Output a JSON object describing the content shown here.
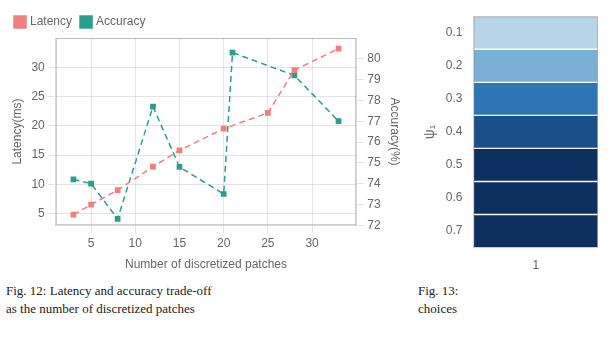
{
  "chart_data": [
    {
      "type": "line",
      "xlabel": "Number of discretized patches",
      "ylabel": "Latency(ms)",
      "y2label": "Accuracy(%)",
      "series": [
        {
          "name": "Latency",
          "color": "#f08080",
          "marker": "square",
          "line_style": "dashed",
          "x": [
            3,
            5,
            8,
            12,
            15,
            20,
            25,
            28,
            33
          ],
          "values": [
            4.8,
            6.5,
            9.0,
            13.0,
            15.8,
            19.5,
            22.2,
            29.5,
            33.2
          ]
        },
        {
          "name": "Accuracy",
          "color": "#2a9d8f",
          "marker": "square",
          "line_style": "dashed",
          "axis": "y2",
          "x": [
            3,
            5,
            8,
            12,
            15,
            20,
            21,
            28,
            33
          ],
          "values": [
            74.2,
            74.0,
            72.3,
            77.7,
            74.8,
            73.5,
            80.3,
            79.2,
            77.0
          ]
        }
      ],
      "xlim": [
        1,
        35
      ],
      "xticks": [
        5,
        10,
        15,
        20,
        25,
        30
      ],
      "ylim": [
        3,
        35
      ],
      "yticks": [
        5,
        10,
        15,
        20,
        25,
        30
      ],
      "y2lim": [
        72,
        81
      ],
      "y2ticks": [
        72,
        73,
        74,
        75,
        76,
        77,
        78,
        79,
        80
      ],
      "grid": true,
      "legend": "upper left",
      "annotations": [
        "Fig. 12: Latency and accuracy trade-off",
        "as the number of discretized patches"
      ]
    },
    {
      "type": "heatmap",
      "ylabel": "ψ₁",
      "categories": [
        "0.1",
        "0.2",
        "0.3",
        "0.4",
        "0.5",
        "0.6",
        "0.7"
      ],
      "colors": [
        "#b8d4e8",
        "#7ab0d4",
        "#2e75b6",
        "#1a4f8a",
        "#0d3060",
        "#0d3060",
        "#0d3060"
      ],
      "xlim": [
        0.5,
        1.5
      ],
      "xticks": [
        1
      ],
      "annotations": [
        "Fig. 13:",
        "choices"
      ]
    }
  ]
}
